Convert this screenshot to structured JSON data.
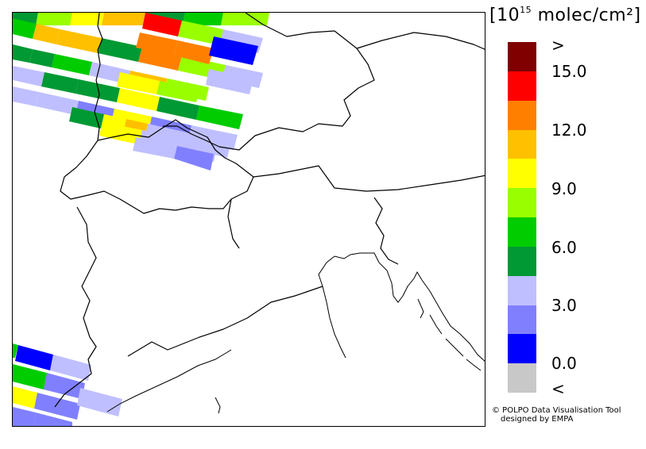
{
  "legend": {
    "unit_prefix": "[10",
    "unit_exponent": "15",
    "unit_suffix": " molec/cm²]",
    "top_label": ">",
    "bottom_label": "<",
    "tick_labels": [
      "15.0",
      "12.0",
      "9.0",
      "6.0",
      "3.0",
      "0.0"
    ],
    "bins": [
      {
        "color": "#800000",
        "range": "> 16.5"
      },
      {
        "color": "#ff0000",
        "range": "15.0 - 16.5"
      },
      {
        "color": "#ff8000",
        "range": "13.5 - 15.0"
      },
      {
        "color": "#ffc000",
        "range": "12.0 - 13.5"
      },
      {
        "color": "#ffff00",
        "range": "10.5 - 12.0"
      },
      {
        "color": "#99ff00",
        "range": "9.0 - 10.5"
      },
      {
        "color": "#00cc00",
        "range": "7.5 - 9.0"
      },
      {
        "color": "#009933",
        "range": "6.0 - 7.5"
      },
      {
        "color": "#bfbfff",
        "range": "4.5 - 6.0"
      },
      {
        "color": "#8080ff",
        "range": "3.0 - 4.5"
      },
      {
        "color": "#0000ff",
        "range": "1.5 - 3.0"
      },
      {
        "color": "#c8c8c8",
        "range": "< 0.0"
      }
    ]
  },
  "credit": {
    "line1": "© POLPO Data Visualisation Tool",
    "line2": "designed by EMPA"
  }
}
